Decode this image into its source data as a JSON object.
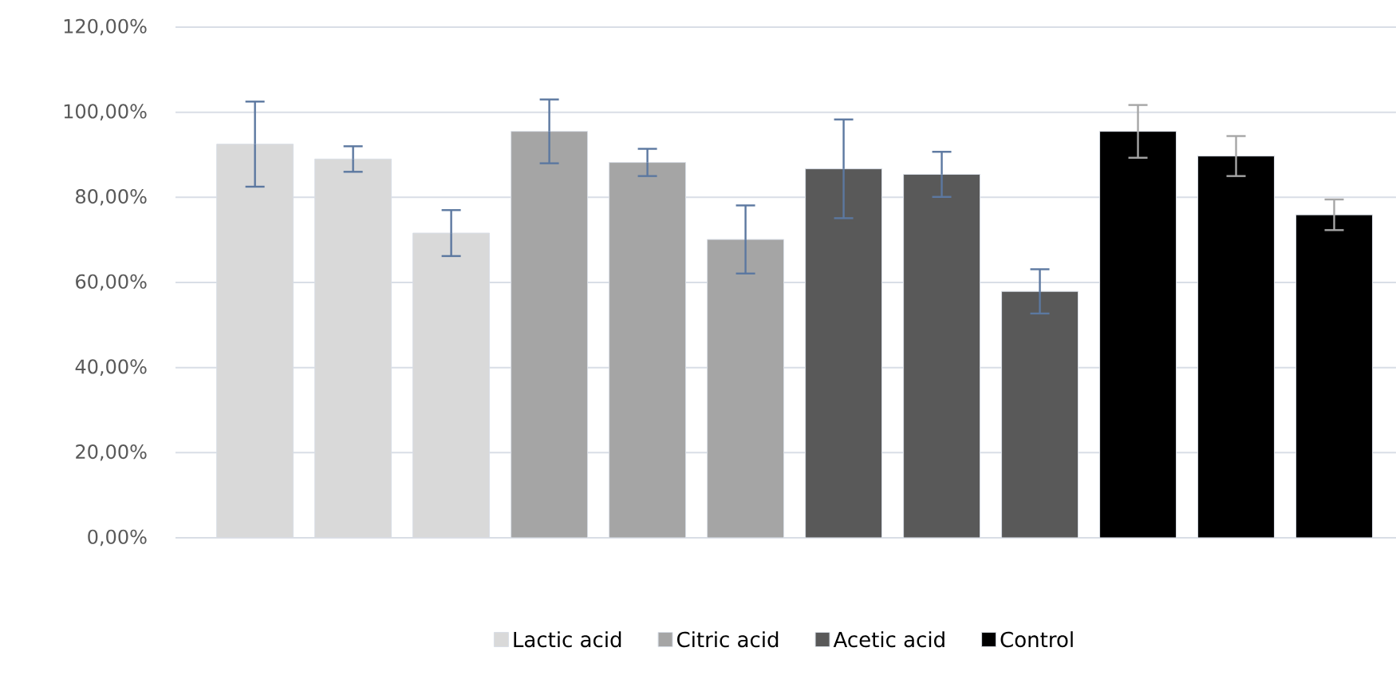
{
  "chart_data": {
    "type": "bar",
    "categories": [
      null,
      null,
      null,
      null,
      null,
      null,
      null,
      null,
      null,
      null,
      null,
      null
    ],
    "series": [
      {
        "name": "Lactic acid",
        "color": "#d9d9d9",
        "values": [
          92.5,
          89.0,
          71.6,
          null,
          null,
          null,
          null,
          null,
          null,
          null,
          null,
          null
        ],
        "errors": [
          10,
          3,
          5.4,
          null,
          null,
          null,
          null,
          null,
          null,
          null,
          null,
          null
        ]
      },
      {
        "name": "Citric acid",
        "color": "#a5a5a5",
        "values": [
          null,
          null,
          null,
          95.5,
          88.2,
          70.1,
          null,
          null,
          null,
          null,
          null,
          null
        ],
        "errors": [
          null,
          null,
          null,
          7.5,
          3.2,
          8,
          null,
          null,
          null,
          null,
          null,
          null
        ]
      },
      {
        "name": "Acetic acid",
        "color": "#595959",
        "values": [
          null,
          null,
          null,
          null,
          null,
          null,
          86.7,
          85.4,
          57.9,
          null,
          null,
          null
        ],
        "errors": [
          null,
          null,
          null,
          null,
          null,
          null,
          11.6,
          5.3,
          5.2,
          null,
          null,
          null
        ]
      },
      {
        "name": "Control",
        "color": "#000000",
        "values": [
          null,
          null,
          null,
          null,
          null,
          null,
          null,
          null,
          null,
          95.5,
          89.7,
          75.9
        ],
        "errors": [
          null,
          null,
          null,
          null,
          null,
          null,
          null,
          null,
          null,
          6.2,
          4.7,
          3.6
        ]
      }
    ],
    "ylim": [
      0,
      120
    ],
    "yticks": [
      {
        "value": 0,
        "label": "0,00%"
      },
      {
        "value": 20,
        "label": "20,00%"
      },
      {
        "value": 40,
        "label": "40,00%"
      },
      {
        "value": 60,
        "label": "60,00%"
      },
      {
        "value": 80,
        "label": "80,00%"
      },
      {
        "value": 100,
        "label": "100,00%"
      },
      {
        "value": 120,
        "label": "120,00%"
      }
    ],
    "grid": "y",
    "legend": "bottom"
  }
}
